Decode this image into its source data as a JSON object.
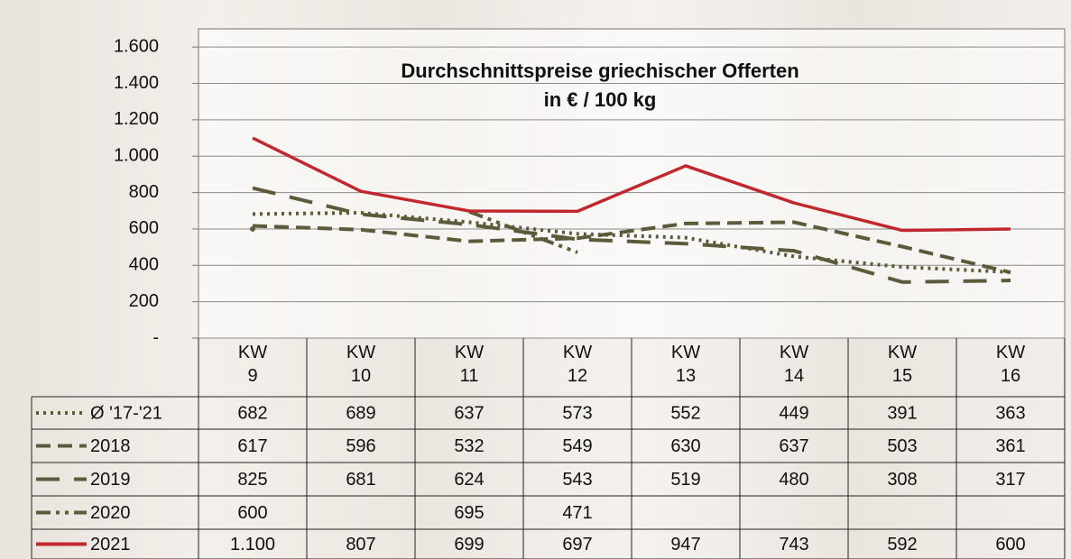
{
  "chart_data": {
    "type": "line",
    "title": "Durchschnittspreise griechischer Offerten",
    "subtitle": "in € / 100 kg",
    "categories": [
      "KW 9",
      "KW 10",
      "KW 11",
      "KW 12",
      "KW 13",
      "KW 14",
      "KW 15",
      "KW 16"
    ],
    "series": [
      {
        "name": "Ø '17-'21",
        "color": "#5c5a3a",
        "dash": "dotted",
        "values": [
          682,
          689,
          637,
          573,
          552,
          449,
          391,
          363
        ]
      },
      {
        "name": "2018",
        "color": "#5c5a3a",
        "dash": "dashed",
        "values": [
          617,
          596,
          532,
          549,
          630,
          637,
          503,
          361
        ]
      },
      {
        "name": "2019",
        "color": "#5c5a3a",
        "dash": "long-dash",
        "values": [
          825,
          681,
          624,
          543,
          519,
          480,
          308,
          317
        ]
      },
      {
        "name": "2020",
        "color": "#5c5a3a",
        "dash": "dash-dot-dot",
        "values": [
          600,
          null,
          695,
          471,
          null,
          null,
          null,
          null
        ]
      },
      {
        "name": "2021",
        "color": "#c0282d",
        "dash": "solid",
        "values": [
          1100,
          807,
          699,
          697,
          947,
          743,
          592,
          600
        ],
        "value_labels": [
          "1.100",
          "807",
          "699",
          "697",
          "947",
          "743",
          "592",
          "600"
        ]
      }
    ],
    "ylim": [
      0,
      1700
    ],
    "yticks": [
      {
        "value": 0,
        "label": "-"
      },
      200,
      400,
      600,
      800,
      {
        "value": 1000,
        "label": "1.000"
      },
      {
        "value": 1200,
        "label": "1.200"
      },
      {
        "value": 1400,
        "label": "1.400"
      },
      {
        "value": 1600,
        "label": "1.600"
      }
    ],
    "grid": true
  }
}
